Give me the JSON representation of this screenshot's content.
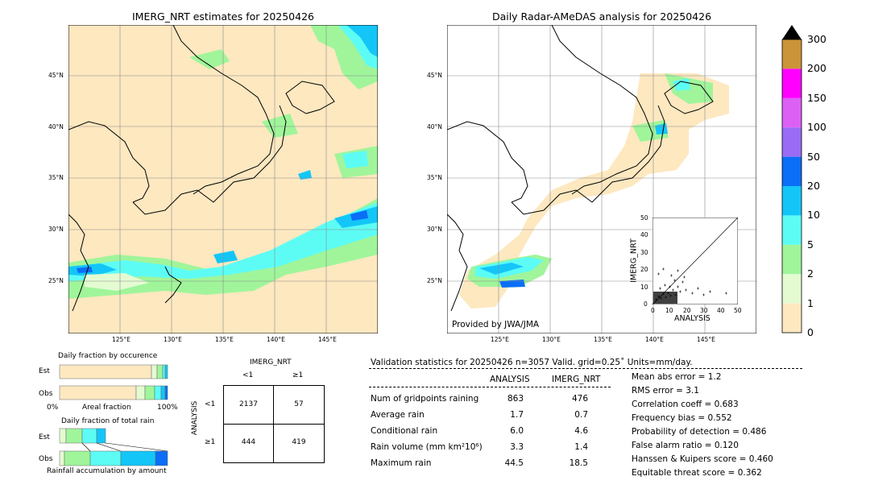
{
  "left_map": {
    "title": "IMERG_NRT estimates for 20250426",
    "lat_ticks": [
      "45°N",
      "40°N",
      "35°N",
      "30°N",
      "25°N"
    ],
    "lon_ticks": [
      "125°E",
      "130°E",
      "135°E",
      "140°E",
      "145°E"
    ]
  },
  "right_map": {
    "title": "Daily Radar-AMeDAS analysis for 20250426",
    "lat_ticks": [
      "45°N",
      "40°N",
      "35°N",
      "30°N",
      "25°N"
    ],
    "lon_ticks": [
      "125°E",
      "130°E",
      "135°E",
      "140°E",
      "145°E"
    ],
    "credit": "Provided by JWA/JMA"
  },
  "colorbar": {
    "labels": [
      "0",
      "1",
      "2",
      "5",
      "10",
      "20",
      "50",
      "100",
      "150",
      "200",
      "300"
    ],
    "colors": [
      "#fde8c0",
      "#e4fbd2",
      "#a0f59a",
      "#5cfcf5",
      "#14c6f8",
      "#0a6ef7",
      "#9a6cf5",
      "#dd60f5",
      "#ff00ff",
      "#cc9438"
    ],
    "extend_color": "#000000"
  },
  "scatter": {
    "xlabel": "ANALYSIS",
    "ylabel": "IMERG_NRT",
    "x_ticks": [
      "0",
      "10",
      "20",
      "30",
      "40",
      "50"
    ],
    "y_ticks": [
      "0",
      "10",
      "20",
      "30",
      "40",
      "50"
    ]
  },
  "occurrence": {
    "title": "Daily fraction by occurence",
    "row_labels": [
      "Est",
      "Obs"
    ],
    "axis_left": "0%",
    "axis_mid": "Areal fraction",
    "axis_right": "100%"
  },
  "total_rain": {
    "title": "Daily fraction of total rain",
    "row_labels": [
      "Est",
      "Obs"
    ],
    "footer": "Rainfall accumulation by amount"
  },
  "contingency": {
    "col_header": "IMERG_NRT",
    "col_labels": [
      "<1",
      "≥1"
    ],
    "row_header": "ANALYSIS",
    "row_labels": [
      "<1",
      "≥1"
    ],
    "cells": [
      [
        "2137",
        "57"
      ],
      [
        "444",
        "419"
      ]
    ]
  },
  "validation": {
    "header": "Validation statistics for 20250426  n=3057 Valid. grid=0.25˚ Units=mm/day.",
    "col_analysis": "ANALYSIS",
    "col_imerg": "IMERG_NRT",
    "rows": [
      {
        "label": "Num of gridpoints raining",
        "analysis": "863",
        "imerg": "476"
      },
      {
        "label": "Average rain",
        "analysis": "1.7",
        "imerg": "0.7"
      },
      {
        "label": "Conditional rain",
        "analysis": "6.0",
        "imerg": "4.6"
      },
      {
        "label": "Rain volume (mm km²10⁶)",
        "analysis": "3.3",
        "imerg": "1.4"
      },
      {
        "label": "Maximum rain",
        "analysis": "44.5",
        "imerg": "18.5"
      }
    ],
    "scores": [
      "Mean abs error =    1.2",
      "RMS error =    3.1",
      "Correlation coeff =  0.683",
      "Frequency bias =  0.552",
      "Probability of detection =  0.486",
      "False alarm ratio =  0.120",
      "Hanssen & Kuipers score =  0.460",
      "Equitable threat score =  0.362"
    ]
  },
  "chart_data": [
    {
      "type": "heatmap",
      "title": "IMERG_NRT estimates for 20250426",
      "xlabel": "",
      "ylabel": "",
      "xlim": [
        120,
        149.5
      ],
      "ylim": [
        20,
        49.5
      ],
      "legend": "colorbar right (mm/day: 0,1,2,5,10,20,50,100,150,200,300)"
    },
    {
      "type": "heatmap",
      "title": "Daily Radar-AMeDAS analysis for 20250426",
      "xlabel": "",
      "ylabel": "",
      "xlim": [
        120,
        149.5
      ],
      "ylim": [
        20,
        49.5
      ]
    },
    {
      "type": "scatter",
      "xlabel": "ANALYSIS",
      "ylabel": "IMERG_NRT",
      "xlim": [
        0,
        50
      ],
      "ylim": [
        0,
        50
      ],
      "diagonal": true
    },
    {
      "type": "table",
      "title": "Validation statistics for 20250426",
      "columns": [
        "ANALYSIS",
        "IMERG_NRT"
      ],
      "rows": [
        [
          "Num of gridpoints raining",
          863,
          476
        ],
        [
          "Average rain",
          1.7,
          0.7
        ],
        [
          "Conditional rain",
          6.0,
          4.6
        ],
        [
          "Rain volume (mm km²10⁶)",
          3.3,
          1.4
        ],
        [
          "Maximum rain",
          44.5,
          18.5
        ]
      ]
    }
  ]
}
